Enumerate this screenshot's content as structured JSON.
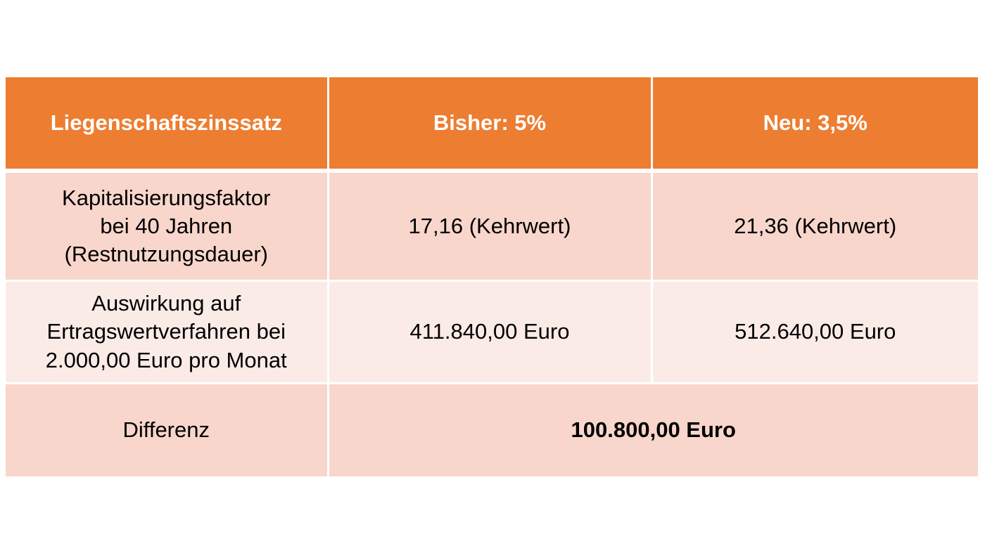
{
  "table": {
    "header": {
      "col1": "Liegenschaftszinssatz",
      "col2": "Bisher: 5%",
      "col3": "Neu: 3,5%"
    },
    "rows": [
      {
        "label_lines": [
          "Kapitalisierungsfaktor",
          "bei 40 Jahren",
          "(Restnutzungsdauer)"
        ],
        "bisher": "17,16 (Kehrwert)",
        "neu": "21,36 (Kehrwert)"
      },
      {
        "label_lines": [
          "Auswirkung auf",
          "Ertragswertverfahren bei",
          "2.000,00 Euro pro Monat"
        ],
        "bisher": "411.840,00 Euro",
        "neu": "512.640,00 Euro"
      }
    ],
    "difference": {
      "label": "Differenz",
      "value": "100.800,00 Euro"
    }
  },
  "colors": {
    "header_bg": "#ed7d31",
    "row_dark": "#f8d6cb",
    "row_light": "#fbebe7"
  }
}
